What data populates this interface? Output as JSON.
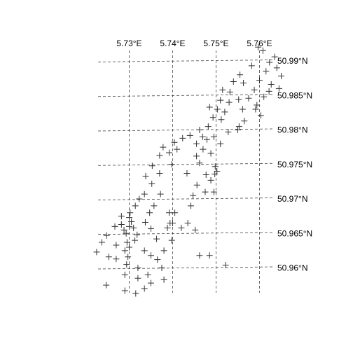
{
  "chart_data": {
    "type": "scatter",
    "title": "",
    "xlabel": "",
    "ylabel": "",
    "marker": "plus",
    "grid": true,
    "xlim": [
      5.7265,
      5.7665
    ],
    "ylim": [
      50.9565,
      50.9925
    ],
    "x_ticks": [
      {
        "value": 5.73,
        "label": "5.73°E"
      },
      {
        "value": 5.74,
        "label": "5.74°E"
      },
      {
        "value": 5.75,
        "label": "5.75°E"
      },
      {
        "value": 5.76,
        "label": "5.76°E"
      }
    ],
    "y_ticks": [
      {
        "value": 50.96,
        "label": "50.96°N"
      },
      {
        "value": 50.965,
        "label": "50.965°N"
      },
      {
        "value": 50.97,
        "label": "50.97°N"
      },
      {
        "value": 50.975,
        "label": "50.975°N"
      },
      {
        "value": 50.98,
        "label": "50.98°N"
      },
      {
        "value": 50.985,
        "label": "50.985°N"
      },
      {
        "value": 50.99,
        "label": "50.99°N"
      }
    ],
    "points": [
      [
        5.7597,
        50.992
      ],
      [
        5.7608,
        50.9915
      ],
      [
        5.7635,
        50.9906
      ],
      [
        5.7623,
        50.9898
      ],
      [
        5.7582,
        50.9893
      ],
      [
        5.764,
        50.989
      ],
      [
        5.7615,
        50.9885
      ],
      [
        5.765,
        50.9878
      ],
      [
        5.7555,
        50.988
      ],
      [
        5.754,
        50.987
      ],
      [
        5.7563,
        50.9868
      ],
      [
        5.76,
        50.9872
      ],
      [
        5.7627,
        50.9866
      ],
      [
        5.7515,
        50.9858
      ],
      [
        5.7532,
        50.9855
      ],
      [
        5.7588,
        50.9858
      ],
      [
        5.7622,
        50.9856
      ],
      [
        5.7645,
        50.986
      ],
      [
        5.761,
        50.9848
      ],
      [
        5.7575,
        50.9846
      ],
      [
        5.751,
        50.9843
      ],
      [
        5.753,
        50.984
      ],
      [
        5.7552,
        50.9844
      ],
      [
        5.7594,
        50.9836
      ],
      [
        5.7485,
        50.9833
      ],
      [
        5.7503,
        50.983
      ],
      [
        5.7561,
        50.983
      ],
      [
        5.7591,
        50.983
      ],
      [
        5.752,
        50.9826
      ],
      [
        5.7603,
        50.9821
      ],
      [
        5.7493,
        50.9818
      ],
      [
        5.7512,
        50.9815
      ],
      [
        5.7565,
        50.9813
      ],
      [
        5.7482,
        50.9805
      ],
      [
        5.7553,
        50.9805
      ],
      [
        5.7462,
        50.98
      ],
      [
        5.7528,
        50.9797
      ],
      [
        5.755,
        50.98
      ],
      [
        5.744,
        50.9792
      ],
      [
        5.7469,
        50.979
      ],
      [
        5.7495,
        50.979
      ],
      [
        5.7423,
        50.9788
      ],
      [
        5.7479,
        50.9786
      ],
      [
        5.7404,
        50.9782
      ],
      [
        5.7455,
        50.978
      ],
      [
        5.751,
        50.978
      ],
      [
        5.7378,
        50.9775
      ],
      [
        5.741,
        50.9772
      ],
      [
        5.747,
        50.9772
      ],
      [
        5.7392,
        50.9767
      ],
      [
        5.7488,
        50.9766
      ],
      [
        5.737,
        50.9763
      ],
      [
        5.7455,
        50.9762
      ],
      [
        5.7353,
        50.9748
      ],
      [
        5.7398,
        50.975
      ],
      [
        5.7462,
        50.9752
      ],
      [
        5.7498,
        50.9747
      ],
      [
        5.737,
        50.9737
      ],
      [
        5.7433,
        50.9737
      ],
      [
        5.7477,
        50.9735
      ],
      [
        5.7497,
        50.9736
      ],
      [
        5.7502,
        50.974
      ],
      [
        5.7338,
        50.9733
      ],
      [
        5.7352,
        50.9722
      ],
      [
        5.7456,
        50.972
      ],
      [
        5.7488,
        50.9727
      ],
      [
        5.7335,
        50.9707
      ],
      [
        5.7372,
        50.9707
      ],
      [
        5.7447,
        50.9705
      ],
      [
        5.7475,
        50.971
      ],
      [
        5.7495,
        50.971
      ],
      [
        5.7323,
        50.97
      ],
      [
        5.7314,
        50.969
      ],
      [
        5.7357,
        50.969
      ],
      [
        5.7442,
        50.969
      ],
      [
        5.7302,
        50.968
      ],
      [
        5.7347,
        50.968
      ],
      [
        5.7392,
        50.968
      ],
      [
        5.7405,
        50.968
      ],
      [
        5.7282,
        50.9675
      ],
      [
        5.73,
        50.9673
      ],
      [
        5.7305,
        50.9667
      ],
      [
        5.7337,
        50.9666
      ],
      [
        5.7394,
        50.9665
      ],
      [
        5.7435,
        50.9665
      ],
      [
        5.74,
        50.9665
      ],
      [
        5.73,
        50.966
      ],
      [
        5.7282,
        50.9663
      ],
      [
        5.7267,
        50.966
      ],
      [
        5.7288,
        50.9655
      ],
      [
        5.731,
        50.9658
      ],
      [
        5.735,
        50.9657
      ],
      [
        5.7388,
        50.9658
      ],
      [
        5.742,
        50.9658
      ],
      [
        5.7452,
        50.9655
      ],
      [
        5.7293,
        50.965
      ],
      [
        5.7318,
        50.9648
      ],
      [
        5.7248,
        50.9647
      ],
      [
        5.7295,
        50.9637
      ],
      [
        5.7313,
        50.964
      ],
      [
        5.7363,
        50.9642
      ],
      [
        5.7398,
        50.964
      ],
      [
        5.7237,
        50.9637
      ],
      [
        5.727,
        50.9633
      ],
      [
        5.729,
        50.9625
      ],
      [
        5.73,
        50.963
      ],
      [
        5.7335,
        50.9625
      ],
      [
        5.738,
        50.9625
      ],
      [
        5.7225,
        50.9623
      ],
      [
        5.7253,
        50.9616
      ],
      [
        5.7297,
        50.9616
      ],
      [
        5.735,
        50.9618
      ],
      [
        5.7462,
        50.9618
      ],
      [
        5.7485,
        50.9618
      ],
      [
        5.727,
        50.9613
      ],
      [
        5.7365,
        50.9612
      ],
      [
        5.7294,
        50.9605
      ],
      [
        5.732,
        50.96
      ],
      [
        5.7375,
        50.96
      ],
      [
        5.7522,
        50.9604
      ],
      [
        5.729,
        50.959
      ],
      [
        5.7343,
        50.959
      ],
      [
        5.732,
        50.9585
      ],
      [
        5.738,
        50.9583
      ],
      [
        5.7247,
        50.9575
      ],
      [
        5.7335,
        50.957
      ],
      [
        5.735,
        50.9578
      ],
      [
        5.729,
        50.9567
      ],
      [
        5.7315,
        50.9563
      ]
    ]
  }
}
